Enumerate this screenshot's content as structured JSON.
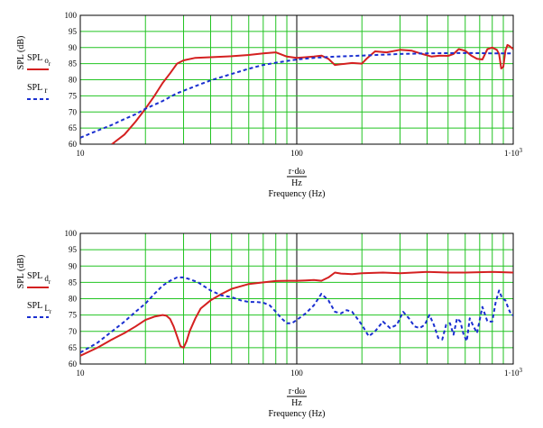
{
  "chart_data": [
    {
      "type": "line",
      "title": "",
      "xlabel": "Frequency (Hz)",
      "xlabel_expr": {
        "top": "r·dω",
        "bottom": "Hz"
      },
      "ylabel": "SPL (dB)",
      "xscale": "log",
      "xlim": [
        10,
        1000
      ],
      "ylim": [
        60,
        100
      ],
      "x_ticks": [
        {
          "v": 10,
          "label": "10"
        },
        {
          "v": 100,
          "label": "100"
        },
        {
          "v": 1000,
          "label": "1·10",
          "exp": "3"
        }
      ],
      "y_ticks": [
        60,
        65,
        70,
        75,
        80,
        85,
        90,
        95,
        100
      ],
      "grid": true,
      "legend": "left",
      "series": [
        {
          "name": "SPL",
          "sub": "o",
          "subsub": "r",
          "color": "#d42020",
          "style": "solid",
          "x": [
            14,
            16,
            18,
            20,
            22,
            24,
            26,
            28,
            30,
            34,
            40,
            50,
            60,
            70,
            80,
            90,
            100,
            110,
            120,
            130,
            140,
            150,
            160,
            180,
            200,
            210,
            230,
            260,
            300,
            340,
            380,
            420,
            460,
            500,
            530,
            560,
            600,
            640,
            680,
            720,
            760,
            800,
            840,
            860,
            880,
            900,
            920,
            940,
            960,
            1000
          ],
          "y": [
            60,
            63,
            67,
            71,
            75,
            79,
            82,
            85,
            86,
            86.8,
            87,
            87.3,
            87.7,
            88.2,
            88.5,
            87.2,
            86.8,
            87,
            87.2,
            87.5,
            86.5,
            84.6,
            84.8,
            85.2,
            85,
            86.5,
            88.8,
            88.5,
            89.3,
            89,
            88,
            87.2,
            87.5,
            87.4,
            88,
            89.5,
            89,
            87.5,
            86.5,
            86.3,
            89.5,
            90,
            89.3,
            88,
            83.5,
            84,
            89,
            90.8,
            90.5,
            89.5
          ]
        },
        {
          "name": "SPL",
          "sub": "r",
          "subsub": "",
          "color": "#1a2fd0",
          "style": "dashed",
          "x": [
            10,
            12,
            14,
            16,
            18,
            20,
            24,
            28,
            34,
            40,
            50,
            60,
            70,
            80,
            100,
            120,
            150,
            200,
            300,
            400,
            600,
            800,
            1000
          ],
          "y": [
            62,
            64.2,
            66,
            67.8,
            69.3,
            71,
            73.4,
            75.8,
            78,
            79.8,
            81.8,
            83.4,
            84.6,
            85.3,
            86.3,
            86.8,
            87.2,
            87.5,
            88,
            88.2,
            88.3,
            88.2,
            88.2
          ]
        }
      ]
    },
    {
      "type": "line",
      "title": "",
      "xlabel": "Frequency (Hz)",
      "xlabel_expr": {
        "top": "r·dω",
        "bottom": "Hz"
      },
      "ylabel": "SPL (dB)",
      "xscale": "log",
      "xlim": [
        10,
        1000
      ],
      "ylim": [
        60,
        100
      ],
      "x_ticks": [
        {
          "v": 10,
          "label": "10"
        },
        {
          "v": 100,
          "label": "100"
        },
        {
          "v": 1000,
          "label": "1·10",
          "exp": "3"
        }
      ],
      "y_ticks": [
        60,
        65,
        70,
        75,
        80,
        85,
        90,
        95,
        100
      ],
      "grid": true,
      "legend": "left",
      "series": [
        {
          "name": "SPL",
          "sub": "d",
          "subsub": "r",
          "color": "#d42020",
          "style": "solid",
          "x": [
            10,
            12,
            14,
            16,
            18,
            20,
            22,
            24,
            25,
            26,
            27,
            28,
            29,
            30,
            31,
            32,
            34,
            36,
            40,
            45,
            50,
            60,
            70,
            80,
            90,
            100,
            110,
            120,
            130,
            140,
            150,
            160,
            180,
            200,
            250,
            300,
            400,
            500,
            600,
            800,
            1000
          ],
          "y": [
            62.5,
            65,
            67.5,
            69.5,
            71.5,
            73.5,
            74.5,
            75,
            74.8,
            73.8,
            71.5,
            68.5,
            65.5,
            65,
            67,
            70,
            74,
            77,
            79.5,
            81.5,
            83,
            84.5,
            85,
            85.4,
            85.5,
            85.5,
            85.6,
            85.7,
            85.5,
            86.5,
            88,
            87.7,
            87.5,
            87.8,
            88,
            87.8,
            88.2,
            88,
            88,
            88.2,
            88
          ]
        },
        {
          "name": "SPL",
          "sub": "L",
          "subsub": "r",
          "color": "#1a2fd0",
          "style": "dashed",
          "x": [
            10,
            12,
            14,
            16,
            18,
            20,
            22,
            24,
            26,
            28,
            30,
            32,
            35,
            40,
            45,
            50,
            55,
            60,
            65,
            70,
            75,
            80,
            85,
            90,
            95,
            100,
            110,
            120,
            130,
            140,
            150,
            160,
            170,
            180,
            190,
            200,
            215,
            230,
            250,
            270,
            290,
            310,
            330,
            350,
            370,
            390,
            410,
            430,
            450,
            470,
            490,
            510,
            530,
            550,
            570,
            590,
            610,
            630,
            650,
            680,
            720,
            760,
            800,
            830,
            860,
            890,
            920,
            950,
            980,
            1000
          ],
          "y": [
            63.5,
            66.5,
            70,
            73,
            76,
            78.5,
            81.5,
            84,
            85.5,
            86.5,
            86.5,
            86,
            85,
            82.5,
            81,
            80.5,
            79.5,
            79,
            79,
            78.8,
            78,
            76,
            74,
            72.5,
            72.5,
            73.5,
            75.5,
            78,
            81.5,
            79.5,
            76,
            75.5,
            76.5,
            76,
            74,
            72,
            68.5,
            70,
            73,
            71,
            72,
            76,
            74,
            71.5,
            71,
            72,
            75,
            72,
            68,
            67.5,
            72,
            72.5,
            69,
            74,
            73,
            69,
            67,
            74,
            72,
            69.5,
            77.5,
            73,
            73,
            79,
            82.5,
            80,
            79.5,
            77,
            75,
            75
          ]
        }
      ]
    }
  ]
}
